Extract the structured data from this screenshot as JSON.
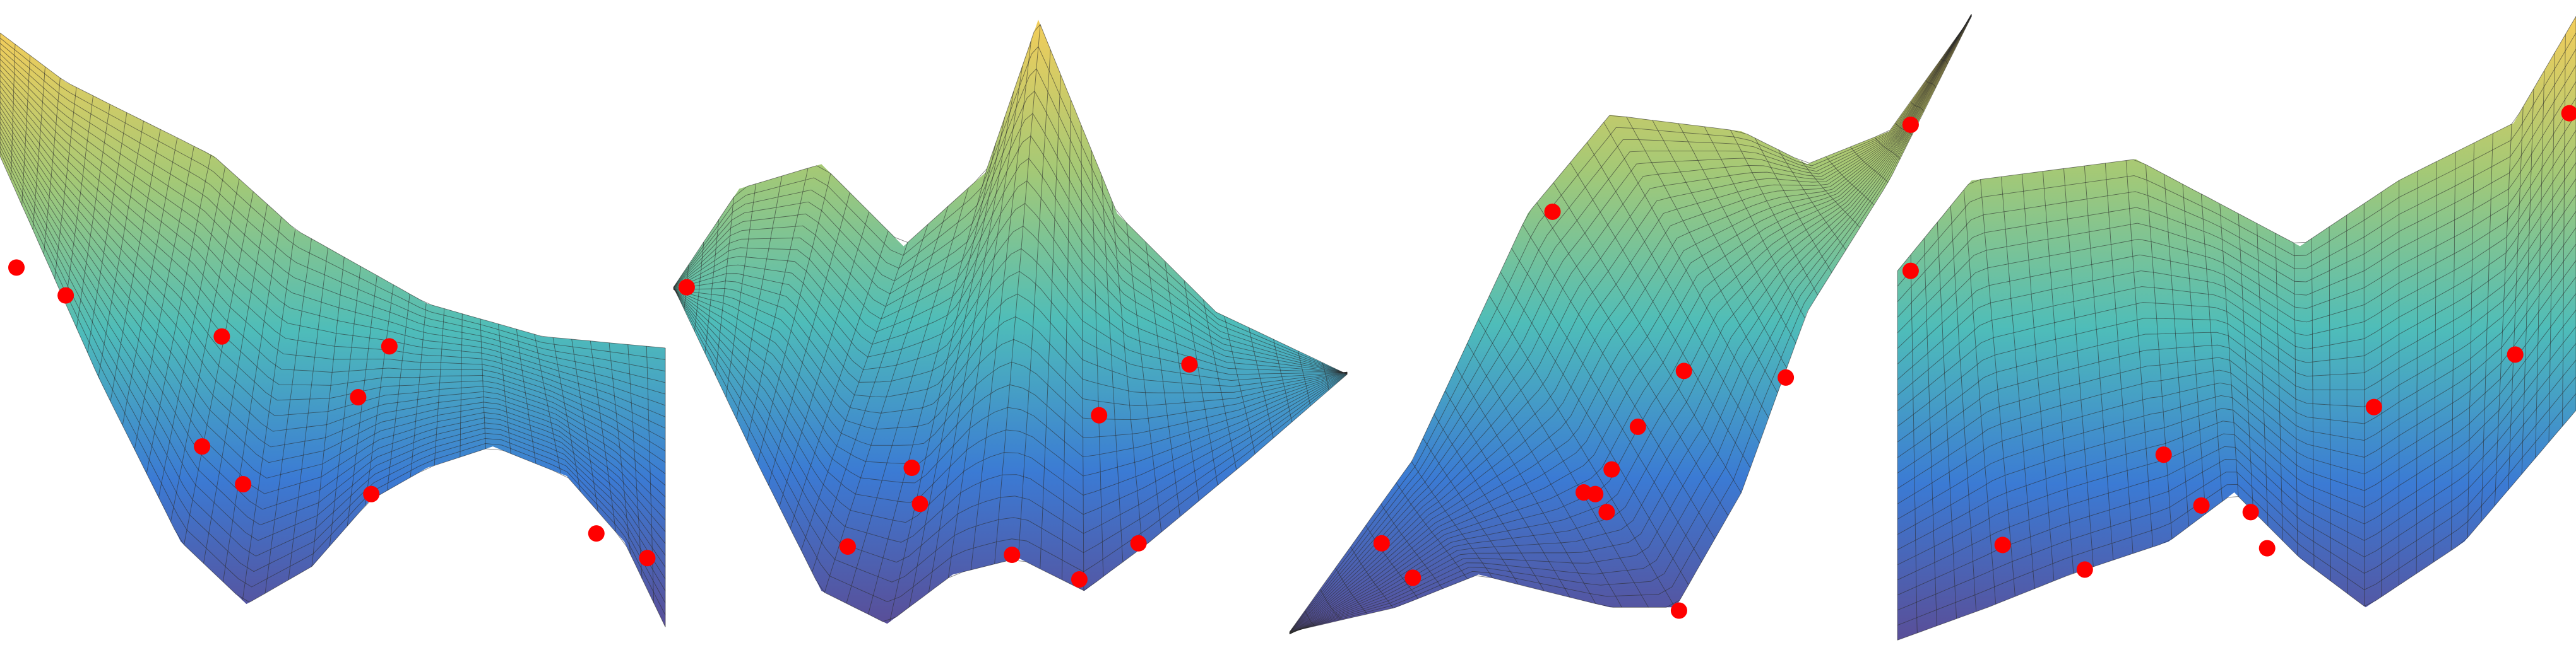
{
  "figure": {
    "panels": [
      {
        "id": "surface-view-1"
      },
      {
        "id": "surface-view-2"
      },
      {
        "id": "surface-view-3"
      },
      {
        "id": "surface-view-4"
      }
    ]
  },
  "colors": {
    "surface_high": "#f2c94c",
    "surface_mid": "#3fb7b3",
    "surface_low": "#2a6fd0",
    "surface_deep": "#4b3f8f",
    "grid": "#2b2b2b",
    "marker": "#ff0000"
  }
}
